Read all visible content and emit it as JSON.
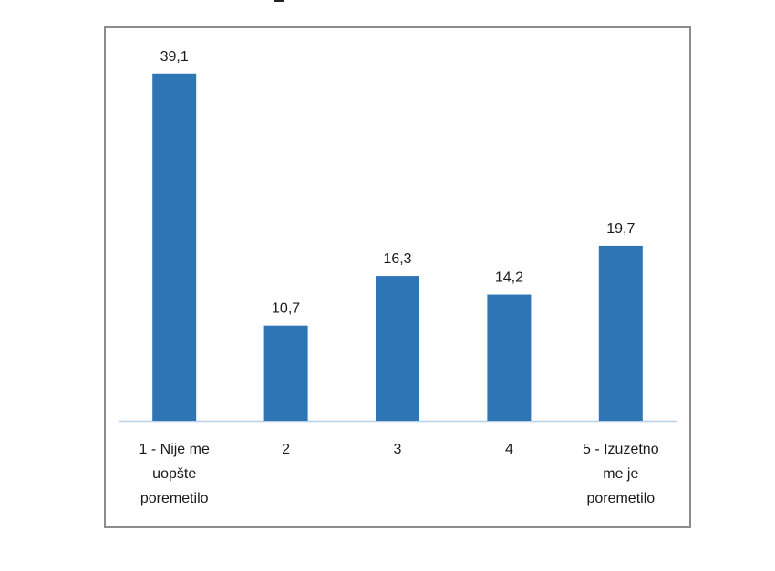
{
  "chart_data": {
    "type": "bar",
    "categories": [
      [
        "1 - Nije me",
        "uopšte",
        "poremetilo"
      ],
      [
        "2"
      ],
      [
        "3"
      ],
      [
        "4"
      ],
      [
        "5 - Izuzetno",
        "me je",
        "poremetilo"
      ]
    ],
    "values": [
      39.1,
      10.7,
      16.3,
      14.2,
      19.7
    ],
    "value_labels": [
      "39,1",
      "10,7",
      "16,3",
      "14,2",
      "19,7"
    ],
    "ylim": [
      0,
      40
    ],
    "grid": false,
    "bar_color": "#2e75b6",
    "axis_color": "#b8cfe4"
  }
}
